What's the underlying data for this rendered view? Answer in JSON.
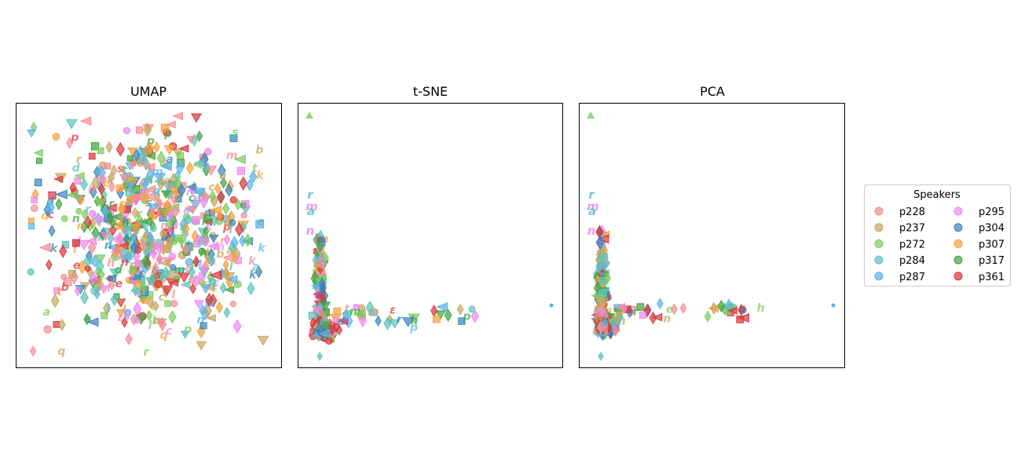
{
  "chart_data": [
    {
      "type": "scatter",
      "title": "UMAP",
      "xlabel": "",
      "ylabel": "",
      "ticks": false,
      "grid": false,
      "note": "dense cloud of points from all speakers; markers are mixed shapes and phoneme glyphs"
    },
    {
      "type": "scatter",
      "title": "t-SNE",
      "xlabel": "",
      "ylabel": "",
      "ticks": false,
      "grid": false,
      "note": "L-shaped distribution: a vertical column near the left edge and a horizontal tail to the right"
    },
    {
      "type": "scatter",
      "title": "PCA",
      "xlabel": "",
      "ylabel": "",
      "ticks": false,
      "grid": false,
      "note": "L-shaped distribution similar to t-SNE"
    }
  ],
  "legend": {
    "title": "Speakers",
    "placement": "right",
    "columns": 2,
    "entries": [
      {
        "name": "p228",
        "color": "#f28e95"
      },
      {
        "name": "p237",
        "color": "#c6a760"
      },
      {
        "name": "p272",
        "color": "#7ccc5e"
      },
      {
        "name": "p284",
        "color": "#5cc3bc"
      },
      {
        "name": "p287",
        "color": "#5ab4ea"
      },
      {
        "name": "p295",
        "color": "#ee88ee"
      },
      {
        "name": "p304",
        "color": "#3a86bb"
      },
      {
        "name": "p307",
        "color": "#f8a03a"
      },
      {
        "name": "p317",
        "color": "#3fa53f"
      },
      {
        "name": "p361",
        "color": "#d9383b"
      }
    ]
  }
}
